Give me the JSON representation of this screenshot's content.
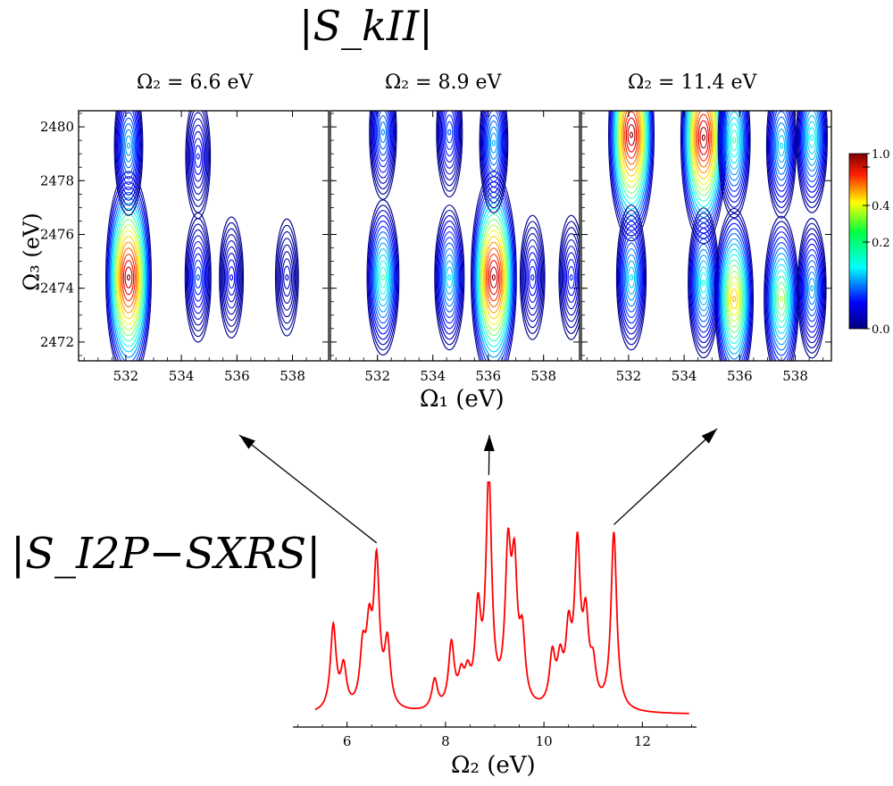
{
  "top_title": "|S_kII|",
  "middle_xlabel": "Ω₁ (eV)",
  "left_ylabel": "Ω₃ (eV)",
  "bottom_title": "|S_I2P−SXRS|",
  "bottom_xlabel": "Ω₂ (eV)",
  "panels": [
    {
      "title": "Ω₂ = 6.6 eV"
    },
    {
      "title": "Ω₂ = 8.9 eV"
    },
    {
      "title": "Ω₂ = 11.4 eV"
    }
  ],
  "colorbar": {
    "ticks": [
      "1.0",
      "0.4",
      "0.2",
      "0.0"
    ]
  },
  "chart_data": [
    {
      "type": "heatmap",
      "title": "Ω₂ = 6.6 eV",
      "xlabel": "Ω₁ (eV)",
      "ylabel": "Ω₃ (eV)",
      "xlim": [
        530.3,
        539.3
      ],
      "ylim": [
        2471.3,
        2480.6
      ],
      "x_ticks": [
        532,
        534,
        536,
        538
      ],
      "y_ticks": [
        2472,
        2474,
        2476,
        2478,
        2480
      ],
      "peaks": [
        {
          "x": 532.1,
          "y": 2474.4,
          "value": 1.0
        },
        {
          "x": 532.1,
          "y": 2479.3,
          "value": 0.3
        },
        {
          "x": 534.6,
          "y": 2474.4,
          "value": 0.2
        },
        {
          "x": 534.6,
          "y": 2478.9,
          "value": 0.15
        },
        {
          "x": 535.8,
          "y": 2474.4,
          "value": 0.12
        },
        {
          "x": 537.8,
          "y": 2474.4,
          "value": 0.08
        }
      ]
    },
    {
      "type": "heatmap",
      "title": "Ω₂ = 8.9 eV",
      "xlabel": "Ω₁ (eV)",
      "ylabel": "Ω₃ (eV)",
      "xlim": [
        530.3,
        539.3
      ],
      "ylim": [
        2471.3,
        2480.6
      ],
      "x_ticks": [
        532,
        534,
        536,
        538
      ],
      "y_ticks": [
        2472,
        2474,
        2476,
        2478,
        2480
      ],
      "peaks": [
        {
          "x": 532.2,
          "y": 2474.4,
          "value": 0.45
        },
        {
          "x": 532.2,
          "y": 2479.8,
          "value": 0.25
        },
        {
          "x": 534.6,
          "y": 2474.4,
          "value": 0.35
        },
        {
          "x": 534.6,
          "y": 2479.8,
          "value": 0.2
        },
        {
          "x": 536.2,
          "y": 2474.4,
          "value": 1.0
        },
        {
          "x": 536.2,
          "y": 2479.4,
          "value": 0.3
        },
        {
          "x": 537.6,
          "y": 2474.4,
          "value": 0.15
        },
        {
          "x": 539.0,
          "y": 2474.4,
          "value": 0.15
        }
      ]
    },
    {
      "type": "heatmap",
      "title": "Ω₂ = 11.4 eV",
      "xlabel": "Ω₁ (eV)",
      "ylabel": "Ω₃ (eV)",
      "xlim": [
        530.3,
        539.3
      ],
      "ylim": [
        2471.3,
        2480.6
      ],
      "x_ticks": [
        532,
        534,
        536,
        538
      ],
      "y_ticks": [
        2472,
        2474,
        2476,
        2478,
        2480
      ],
      "peaks": [
        {
          "x": 532.1,
          "y": 2479.7,
          "value": 1.0
        },
        {
          "x": 532.1,
          "y": 2474.4,
          "value": 0.35
        },
        {
          "x": 534.7,
          "y": 2479.6,
          "value": 1.0
        },
        {
          "x": 534.7,
          "y": 2474.2,
          "value": 0.4
        },
        {
          "x": 535.8,
          "y": 2473.6,
          "value": 0.7
        },
        {
          "x": 535.8,
          "y": 2479.5,
          "value": 0.45
        },
        {
          "x": 537.5,
          "y": 2473.6,
          "value": 0.55
        },
        {
          "x": 537.5,
          "y": 2479.3,
          "value": 0.35
        },
        {
          "x": 538.6,
          "y": 2479.6,
          "value": 0.4
        },
        {
          "x": 538.6,
          "y": 2474.0,
          "value": 0.3
        }
      ]
    },
    {
      "type": "line",
      "title": "|S_I2P−SXRS|",
      "xlabel": "Ω₂ (eV)",
      "xlim": [
        4.9,
        13.1
      ],
      "x_ticks": [
        6,
        8,
        10,
        12
      ],
      "line_color": "#ff0000",
      "peaks": [
        {
          "x": 5.72,
          "y": 0.37
        },
        {
          "x": 5.93,
          "y": 0.18
        },
        {
          "x": 6.32,
          "y": 0.24
        },
        {
          "x": 6.45,
          "y": 0.3
        },
        {
          "x": 6.6,
          "y": 0.62
        },
        {
          "x": 6.82,
          "y": 0.28
        },
        {
          "x": 7.78,
          "y": 0.13
        },
        {
          "x": 8.12,
          "y": 0.28
        },
        {
          "x": 8.32,
          "y": 0.12
        },
        {
          "x": 8.45,
          "y": 0.12
        },
        {
          "x": 8.66,
          "y": 0.4
        },
        {
          "x": 8.88,
          "y": 1.0
        },
        {
          "x": 9.27,
          "y": 0.63
        },
        {
          "x": 9.4,
          "y": 0.55
        },
        {
          "x": 9.56,
          "y": 0.28
        },
        {
          "x": 10.17,
          "y": 0.22
        },
        {
          "x": 10.33,
          "y": 0.18
        },
        {
          "x": 10.5,
          "y": 0.3
        },
        {
          "x": 10.68,
          "y": 0.68
        },
        {
          "x": 10.85,
          "y": 0.35
        },
        {
          "x": 11.0,
          "y": 0.16
        },
        {
          "x": 11.42,
          "y": 0.78
        }
      ]
    }
  ]
}
